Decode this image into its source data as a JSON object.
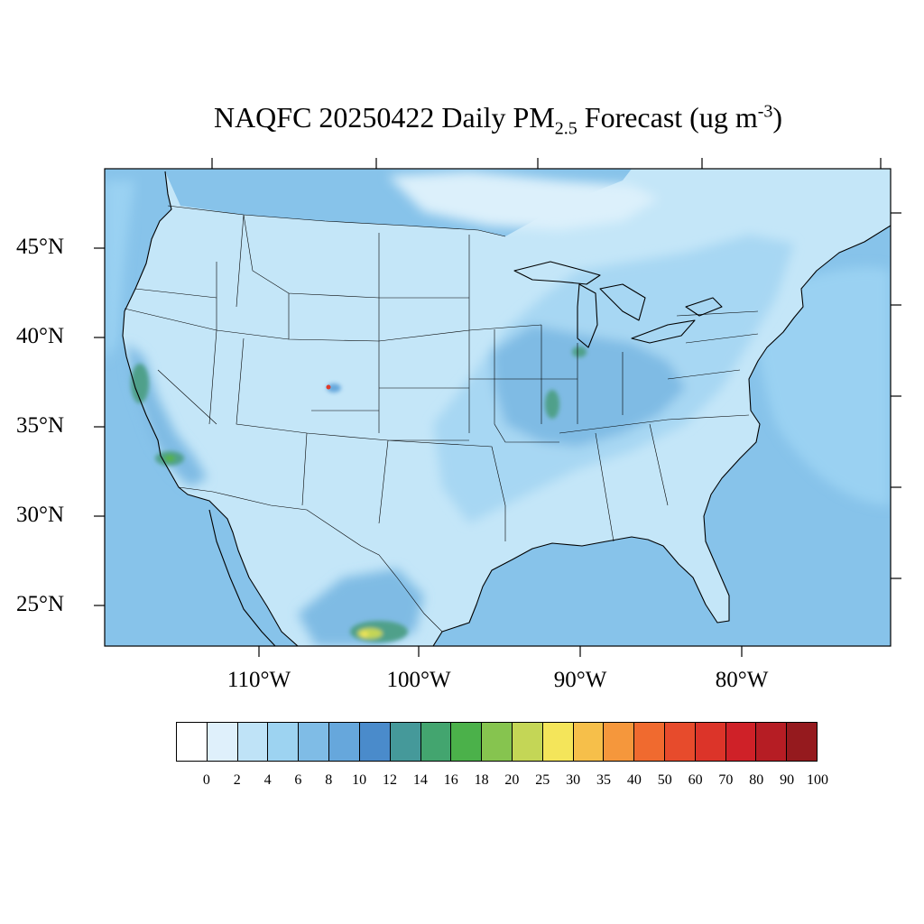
{
  "title": {
    "prefix": "NAQFC 20250422 Daily PM",
    "subscript": "2.5",
    "middle": " Forecast (ug m",
    "superscript": "-3",
    "suffix": ")"
  },
  "lat_labels": [
    "45°N",
    "40°N",
    "35°N",
    "30°N",
    "25°N"
  ],
  "lon_labels": [
    "110°W",
    "100°W",
    "90°W",
    "80°W"
  ],
  "colorbar": {
    "labels": [
      "0",
      "2",
      "4",
      "6",
      "8",
      "10",
      "12",
      "14",
      "16",
      "18",
      "20",
      "25",
      "30",
      "35",
      "40",
      "50",
      "60",
      "70",
      "80",
      "90",
      "100"
    ],
    "colors": [
      "#ffffff",
      "#dff0fb",
      "#bfe3f7",
      "#9dd3f1",
      "#7fbce6",
      "#66a7dc",
      "#4a8bcb",
      "#45999a",
      "#43a56f",
      "#4bb14a",
      "#86c44f",
      "#c4d656",
      "#f4e55a",
      "#f6bf4a",
      "#f5973c",
      "#f06a2f",
      "#e74b2c",
      "#dc3429",
      "#cf2128",
      "#b61d24",
      "#951a1e"
    ]
  },
  "map_colors": {
    "ocean": "#87c3ea",
    "offshore": "#9ad1f2",
    "land_low": "#c4e6f8",
    "land_mid": "#a7d7f3",
    "land_high": "#7fbbe4",
    "hot_10": "#66a7dc",
    "hot_14": "#4fa08a",
    "hot_18": "#57b24a",
    "hot_25": "#c4d656",
    "hot_30": "#f4e55a",
    "hot_max": "#e03a2a",
    "north_clean": "#dcf0fb"
  }
}
